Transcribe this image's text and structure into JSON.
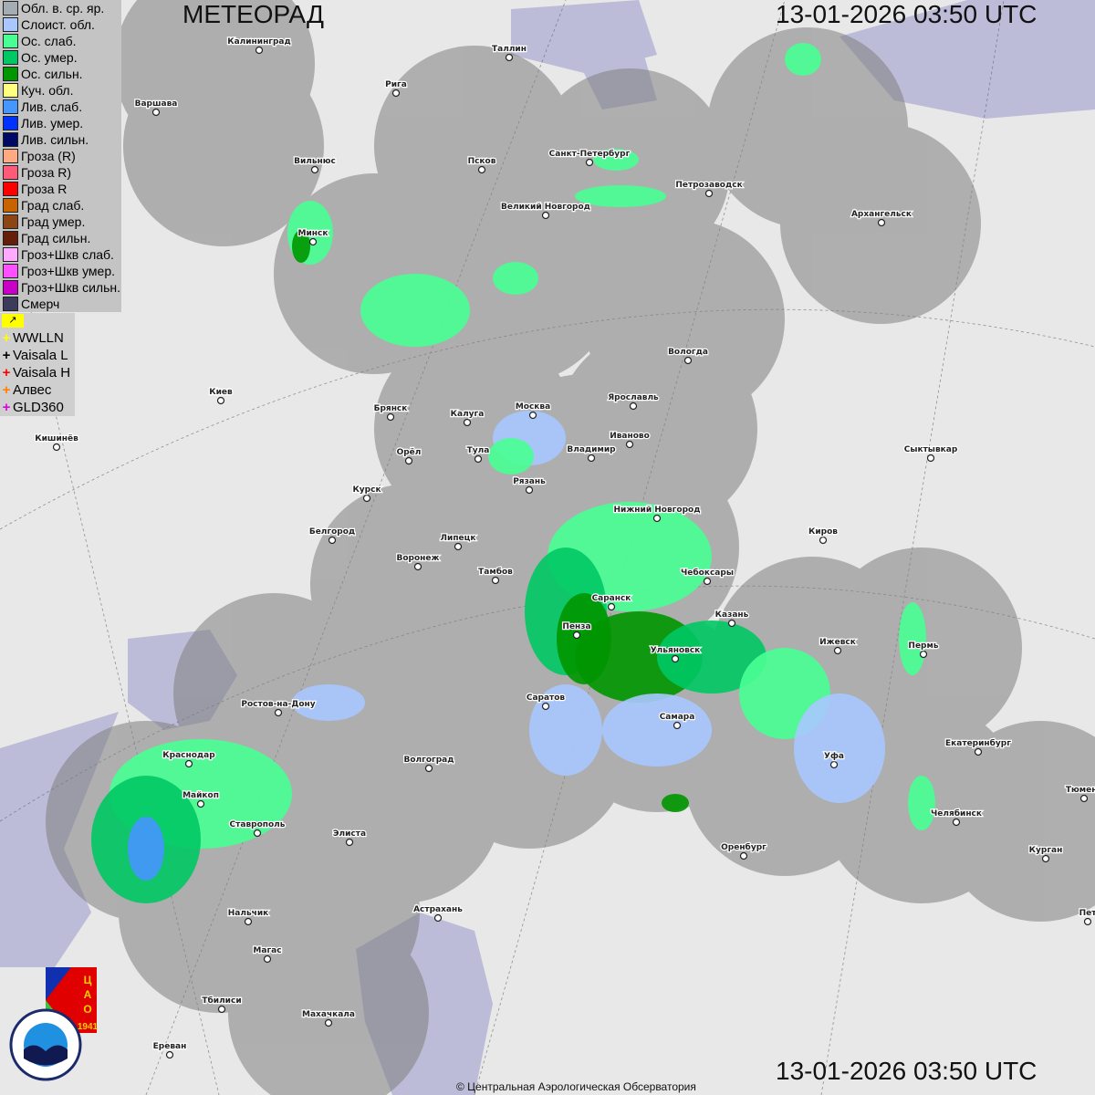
{
  "header": {
    "title": "МЕТЕОРАД",
    "timestamp_top": "13-01-2026  03:50 UTC",
    "timestamp_bottom": "13-01-2026  03:50 UTC"
  },
  "legend": {
    "items": [
      {
        "label": "Обл. в. ср. яр.",
        "color": "#a4adb4"
      },
      {
        "label": "Слоист. обл.",
        "color": "#a8c8ff"
      },
      {
        "label": "Ос. слаб.",
        "color": "#48ff94"
      },
      {
        "label": "Ос. умер.",
        "color": "#00c864"
      },
      {
        "label": "Ос. сильн.",
        "color": "#009600"
      },
      {
        "label": "Куч. обл.",
        "color": "#ffff80"
      },
      {
        "label": "Лив. слаб.",
        "color": "#4696ff"
      },
      {
        "label": "Лив. умер.",
        "color": "#0032ff"
      },
      {
        "label": "Лив. сильн.",
        "color": "#000a64"
      },
      {
        "label": "Гроза (R)",
        "color": "#ffaa82"
      },
      {
        "label": "Гроза R)",
        "color": "#ff5a78"
      },
      {
        "label": "Гроза R",
        "color": "#ff0000"
      },
      {
        "label": "Град слаб.",
        "color": "#c86400"
      },
      {
        "label": "Град умер.",
        "color": "#8c4614"
      },
      {
        "label": "Град сильн.",
        "color": "#641e0a"
      },
      {
        "label": "Гроз+Шкв слаб.",
        "color": "#ffaaff"
      },
      {
        "label": "Гроз+Шкв умер.",
        "color": "#ff50ff"
      },
      {
        "label": "Гроз+Шкв сильн.",
        "color": "#c800c8"
      },
      {
        "label": "Смерч",
        "color": "#3c3c5a"
      }
    ],
    "marker_icon": "flag-corner-icon",
    "lightning": [
      {
        "label": "WWLLN",
        "color": "#ffff00"
      },
      {
        "label": "Vaisala L",
        "color": "#000000"
      },
      {
        "label": "Vaisala H",
        "color": "#ff0000"
      },
      {
        "label": "Алвес",
        "color": "#ff8000"
      },
      {
        "label": "GLD360",
        "color": "#e000e0"
      }
    ]
  },
  "map": {
    "cities": [
      {
        "name": "Калининград",
        "lon": 20.5,
        "lat": 54.7
      },
      {
        "name": "Таллин",
        "lon": 24.7,
        "lat": 59.4
      },
      {
        "name": "Рига",
        "lon": 24.1,
        "lat": 56.9
      },
      {
        "name": "Варшава",
        "lon": 21.0,
        "lat": 52.2
      },
      {
        "name": "Санкт-Петербург",
        "lon": 30.3,
        "lat": 59.9
      },
      {
        "name": "Вильнюс",
        "lon": 25.3,
        "lat": 54.7
      },
      {
        "name": "Псков",
        "lon": 28.3,
        "lat": 57.8
      },
      {
        "name": "Петрозаводск",
        "lon": 34.4,
        "lat": 61.8
      },
      {
        "name": "Великий Новгород",
        "lon": 31.3,
        "lat": 58.5
      },
      {
        "name": "Архангельск",
        "lon": 40.5,
        "lat": 64.5
      },
      {
        "name": "Минск",
        "lon": 27.6,
        "lat": 53.9
      },
      {
        "name": "Вологда",
        "lon": 39.9,
        "lat": 59.2
      },
      {
        "name": "Киев",
        "lon": 30.5,
        "lat": 50.5
      },
      {
        "name": "Брянск",
        "lon": 34.4,
        "lat": 53.2
      },
      {
        "name": "Калуга",
        "lon": 36.3,
        "lat": 54.5
      },
      {
        "name": "Москва",
        "lon": 37.6,
        "lat": 55.8
      },
      {
        "name": "Ярославль",
        "lon": 39.9,
        "lat": 57.6
      },
      {
        "name": "Иваново",
        "lon": 41.0,
        "lat": 57.0
      },
      {
        "name": "Кишинёв",
        "lon": 28.9,
        "lat": 47.0
      },
      {
        "name": "Орёл",
        "lon": 36.1,
        "lat": 53.0
      },
      {
        "name": "Тула",
        "lon": 37.6,
        "lat": 54.2
      },
      {
        "name": "Владимир",
        "lon": 40.4,
        "lat": 56.1
      },
      {
        "name": "Сыктывкар",
        "lon": 50.8,
        "lat": 61.7
      },
      {
        "name": "Рязань",
        "lon": 39.7,
        "lat": 54.6
      },
      {
        "name": "Курск",
        "lon": 36.2,
        "lat": 51.7
      },
      {
        "name": "Нижний Новгород",
        "lon": 44.0,
        "lat": 56.3
      },
      {
        "name": "Белгород",
        "lon": 36.6,
        "lat": 50.6
      },
      {
        "name": "Киров",
        "lon": 49.7,
        "lat": 58.6
      },
      {
        "name": "Липецк",
        "lon": 39.6,
        "lat": 52.6
      },
      {
        "name": "Воронеж",
        "lon": 39.2,
        "lat": 51.7
      },
      {
        "name": "Тамбов",
        "lon": 41.4,
        "lat": 52.7
      },
      {
        "name": "Чебоксары",
        "lon": 47.2,
        "lat": 56.1
      },
      {
        "name": "Саранск",
        "lon": 45.2,
        "lat": 54.2
      },
      {
        "name": "Казань",
        "lon": 49.1,
        "lat": 55.8
      },
      {
        "name": "Пенза",
        "lon": 45.0,
        "lat": 53.2
      },
      {
        "name": "Ижевск",
        "lon": 53.2,
        "lat": 56.8
      },
      {
        "name": "Пермь",
        "lon": 56.2,
        "lat": 58.0
      },
      {
        "name": "Ульяновск",
        "lon": 48.4,
        "lat": 54.3
      },
      {
        "name": "Саратов",
        "lon": 46.0,
        "lat": 51.5
      },
      {
        "name": "Ростов-на-Дону",
        "lon": 39.7,
        "lat": 47.2
      },
      {
        "name": "Самара",
        "lon": 50.1,
        "lat": 53.2
      },
      {
        "name": "Екатеринбург",
        "lon": 60.6,
        "lat": 56.8
      },
      {
        "name": "Краснодар",
        "lon": 39.0,
        "lat": 45.0
      },
      {
        "name": "Волгоград",
        "lon": 44.5,
        "lat": 48.7
      },
      {
        "name": "Уфа",
        "lon": 56.0,
        "lat": 54.7
      },
      {
        "name": "Тюмень",
        "lon": 65.5,
        "lat": 57.2
      },
      {
        "name": "Майкоп",
        "lon": 40.1,
        "lat": 44.6
      },
      {
        "name": "Челябинск",
        "lon": 61.4,
        "lat": 55.2
      },
      {
        "name": "Ставрополь",
        "lon": 42.0,
        "lat": 45.0
      },
      {
        "name": "Элиста",
        "lon": 44.3,
        "lat": 46.3
      },
      {
        "name": "Оренбург",
        "lon": 55.1,
        "lat": 51.8
      },
      {
        "name": "Курган",
        "lon": 65.3,
        "lat": 55.4
      },
      {
        "name": "Астрахань",
        "lon": 48.0,
        "lat": 46.3
      },
      {
        "name": "Нальчик",
        "lon": 43.6,
        "lat": 43.5
      },
      {
        "name": "Пет",
        "lon": 69.1,
        "lat": 54.9
      },
      {
        "name": "Магас",
        "lon": 44.8,
        "lat": 43.2
      },
      {
        "name": "Тбилиси",
        "lon": 44.8,
        "lat": 41.7
      },
      {
        "name": "Махачкала",
        "lon": 47.5,
        "lat": 43.0
      },
      {
        "name": "Ереван",
        "lon": 44.5,
        "lat": 40.2
      }
    ]
  },
  "logos": {
    "cao_text": "ЦАО 1941",
    "roshydromet_text": "РОСГИДРОМЕТ ROSHYDROMET"
  },
  "footer": {
    "copyright": "© Центральная Аэрологическая Обсерватория"
  }
}
